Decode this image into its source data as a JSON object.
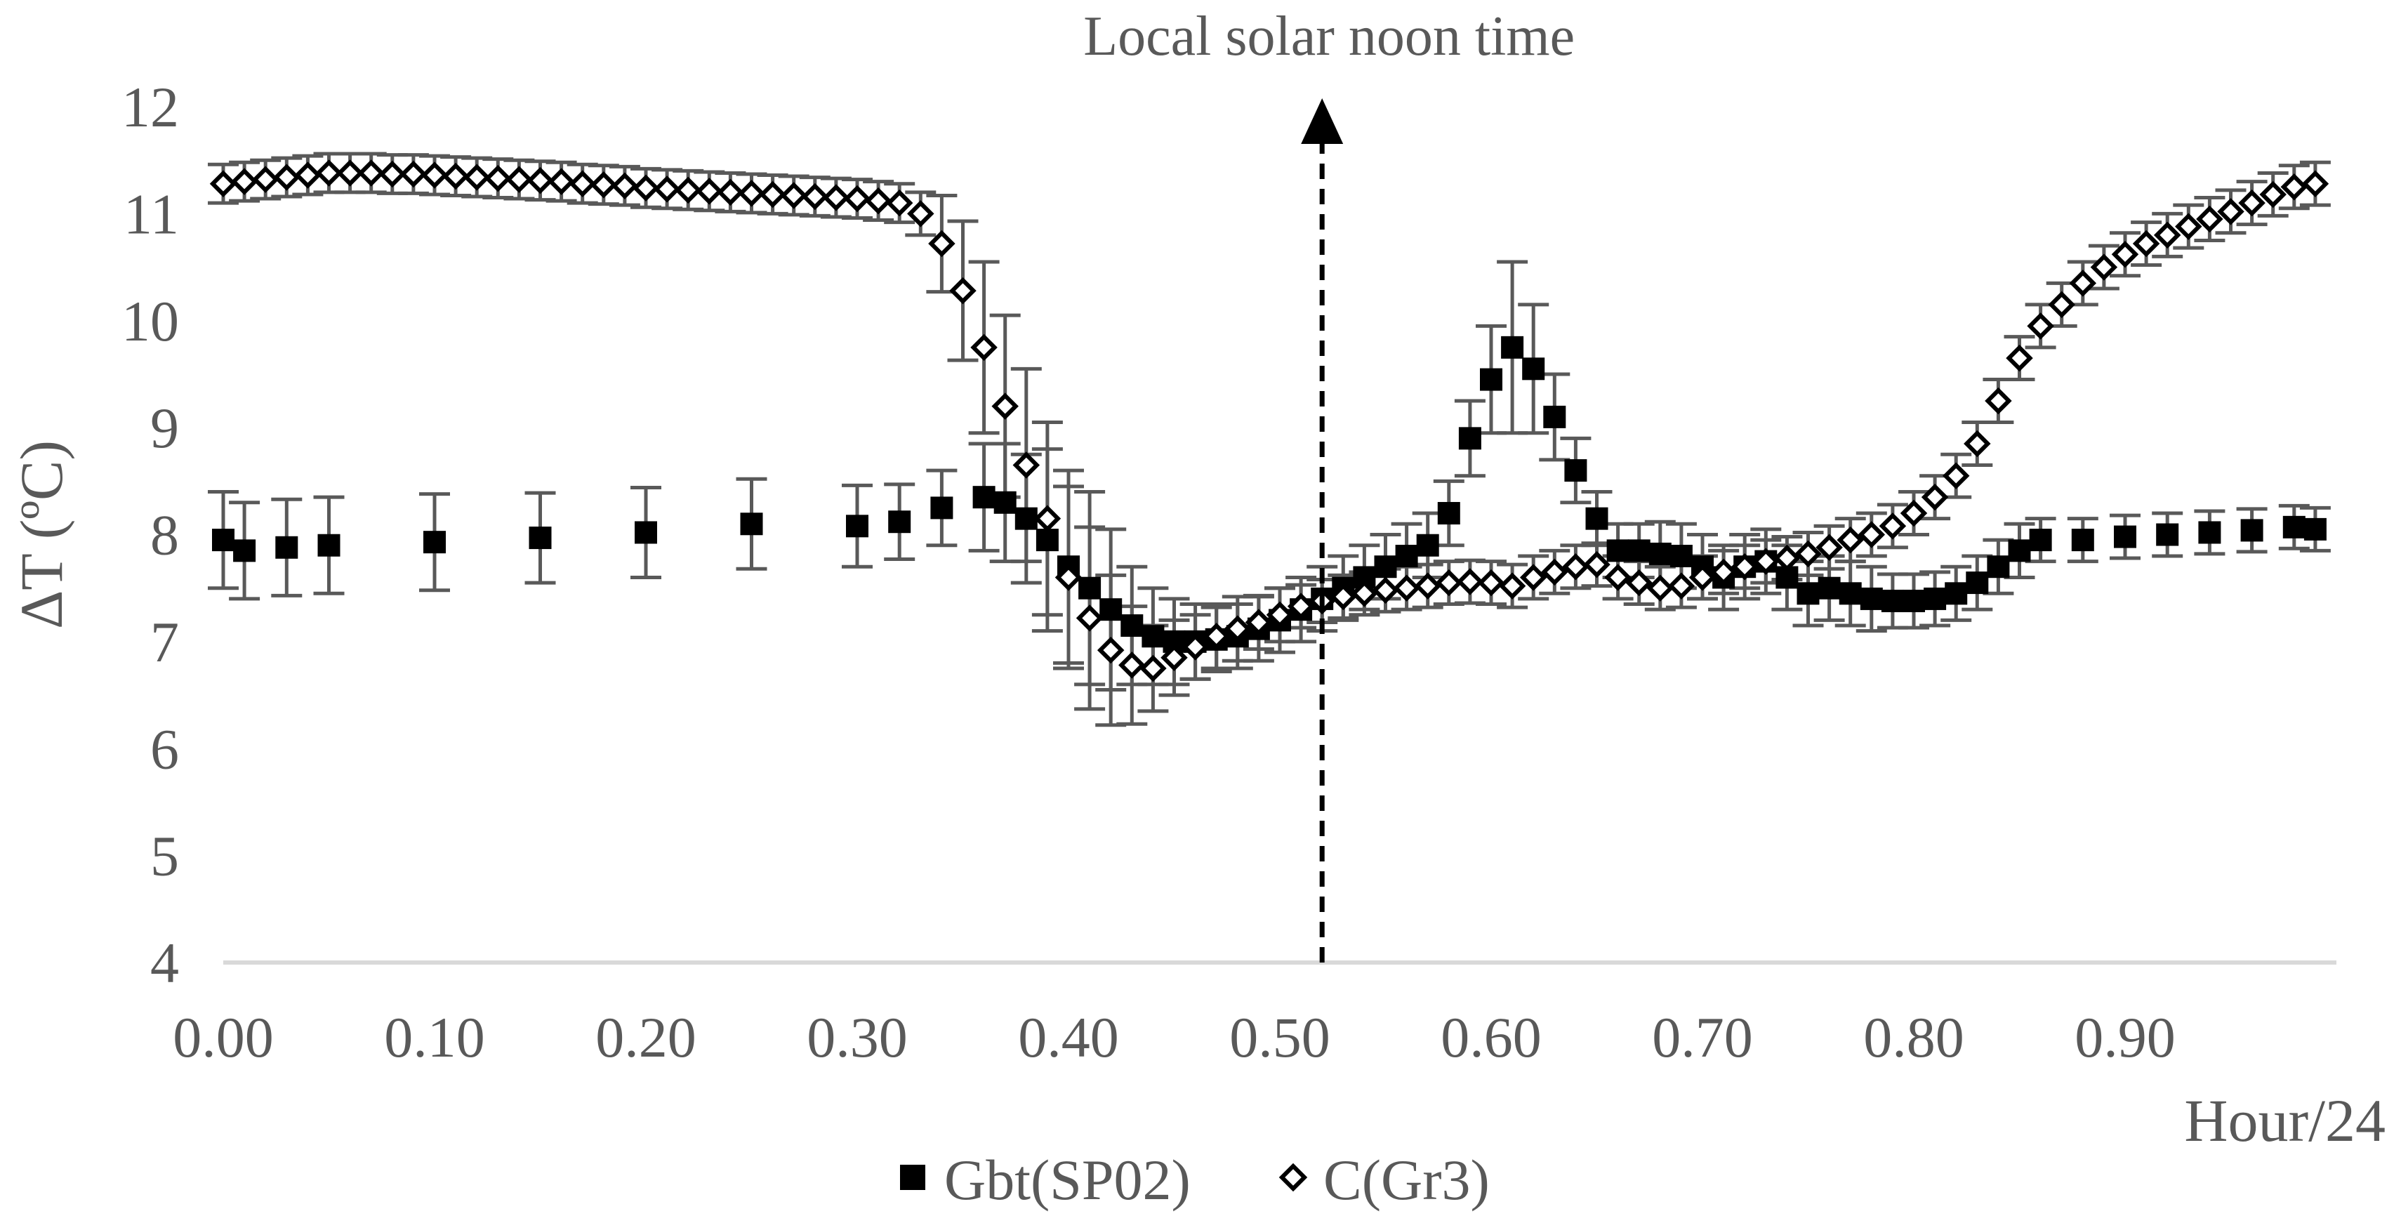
{
  "chart_data": {
    "type": "scatter",
    "title": "",
    "xlabel": "Hour/24",
    "ylabel": "ΔT (ºC)",
    "xlim": [
      0.0,
      1.0
    ],
    "ylim": [
      4,
      12
    ],
    "x_ticks": [
      "0.00",
      "0.10",
      "0.20",
      "0.30",
      "0.40",
      "0.50",
      "0.60",
      "0.70",
      "0.80",
      "0.90"
    ],
    "y_ticks": [
      "4",
      "5",
      "6",
      "7",
      "8",
      "9",
      "10",
      "11",
      "12"
    ],
    "grid": false,
    "legend_position": "bottom",
    "annotation": {
      "text": "Local solar noon time",
      "x": 0.52
    },
    "series": [
      {
        "name": "Gbt(SP02)",
        "marker": "filled-square",
        "color": "#000000",
        "x": [
          0.0,
          0.01,
          0.03,
          0.05,
          0.1,
          0.15,
          0.2,
          0.25,
          0.3,
          0.32,
          0.34,
          0.36,
          0.37,
          0.38,
          0.39,
          0.4,
          0.41,
          0.42,
          0.43,
          0.44,
          0.45,
          0.46,
          0.47,
          0.48,
          0.49,
          0.5,
          0.51,
          0.52,
          0.53,
          0.54,
          0.55,
          0.56,
          0.57,
          0.58,
          0.59,
          0.6,
          0.61,
          0.62,
          0.63,
          0.64,
          0.65,
          0.66,
          0.67,
          0.68,
          0.69,
          0.7,
          0.71,
          0.72,
          0.73,
          0.74,
          0.75,
          0.76,
          0.77,
          0.78,
          0.79,
          0.8,
          0.81,
          0.82,
          0.83,
          0.84,
          0.85,
          0.86,
          0.88,
          0.9,
          0.92,
          0.94,
          0.96,
          0.98,
          0.99
        ],
        "y": [
          7.95,
          7.85,
          7.88,
          7.9,
          7.93,
          7.97,
          8.02,
          8.1,
          8.08,
          8.12,
          8.25,
          8.35,
          8.3,
          8.15,
          7.95,
          7.7,
          7.5,
          7.3,
          7.15,
          7.05,
          7.0,
          7.0,
          7.02,
          7.05,
          7.12,
          7.2,
          7.3,
          7.4,
          7.5,
          7.6,
          7.7,
          7.8,
          7.9,
          8.2,
          8.9,
          9.45,
          9.75,
          9.55,
          9.1,
          8.6,
          8.15,
          7.85,
          7.85,
          7.82,
          7.8,
          7.7,
          7.6,
          7.7,
          7.75,
          7.6,
          7.45,
          7.5,
          7.45,
          7.4,
          7.38,
          7.38,
          7.4,
          7.45,
          7.55,
          7.7,
          7.85,
          7.95,
          7.95,
          7.98,
          8.0,
          8.02,
          8.04,
          8.07,
          8.05
        ],
        "error": [
          0.45,
          0.45,
          0.45,
          0.45,
          0.45,
          0.42,
          0.42,
          0.42,
          0.38,
          0.35,
          0.35,
          0.5,
          0.55,
          0.6,
          0.85,
          0.9,
          0.9,
          0.75,
          0.55,
          0.45,
          0.4,
          0.35,
          0.3,
          0.3,
          0.3,
          0.3,
          0.3,
          0.3,
          0.3,
          0.3,
          0.3,
          0.3,
          0.3,
          0.3,
          0.35,
          0.5,
          0.8,
          0.6,
          0.4,
          0.3,
          0.25,
          0.25,
          0.25,
          0.3,
          0.3,
          0.3,
          0.3,
          0.3,
          0.3,
          0.3,
          0.3,
          0.3,
          0.3,
          0.3,
          0.25,
          0.25,
          0.25,
          0.25,
          0.25,
          0.25,
          0.25,
          0.2,
          0.2,
          0.2,
          0.2,
          0.2,
          0.2,
          0.2,
          0.2
        ]
      },
      {
        "name": "C(Gr3)",
        "marker": "open-diamond",
        "color": "#000000",
        "x": [
          0.0,
          0.01,
          0.02,
          0.03,
          0.04,
          0.05,
          0.06,
          0.07,
          0.08,
          0.09,
          0.1,
          0.11,
          0.12,
          0.13,
          0.14,
          0.15,
          0.16,
          0.17,
          0.18,
          0.19,
          0.2,
          0.21,
          0.22,
          0.23,
          0.24,
          0.25,
          0.26,
          0.27,
          0.28,
          0.29,
          0.3,
          0.31,
          0.32,
          0.33,
          0.34,
          0.35,
          0.36,
          0.37,
          0.38,
          0.39,
          0.4,
          0.41,
          0.42,
          0.43,
          0.44,
          0.45,
          0.46,
          0.47,
          0.48,
          0.49,
          0.5,
          0.51,
          0.52,
          0.53,
          0.54,
          0.55,
          0.56,
          0.57,
          0.58,
          0.59,
          0.6,
          0.61,
          0.62,
          0.63,
          0.64,
          0.65,
          0.66,
          0.67,
          0.68,
          0.69,
          0.7,
          0.71,
          0.72,
          0.73,
          0.74,
          0.75,
          0.76,
          0.77,
          0.78,
          0.79,
          0.8,
          0.81,
          0.82,
          0.83,
          0.84,
          0.85,
          0.86,
          0.87,
          0.88,
          0.89,
          0.9,
          0.91,
          0.92,
          0.93,
          0.94,
          0.95,
          0.96,
          0.97,
          0.98,
          0.99
        ],
        "y": [
          11.28,
          11.3,
          11.32,
          11.34,
          11.36,
          11.38,
          11.38,
          11.38,
          11.37,
          11.37,
          11.36,
          11.35,
          11.34,
          11.33,
          11.32,
          11.31,
          11.3,
          11.28,
          11.27,
          11.26,
          11.24,
          11.23,
          11.22,
          11.21,
          11.2,
          11.19,
          11.18,
          11.17,
          11.16,
          11.15,
          11.14,
          11.12,
          11.1,
          11.0,
          10.72,
          10.28,
          9.75,
          9.2,
          8.65,
          8.15,
          7.6,
          7.22,
          6.92,
          6.78,
          6.75,
          6.85,
          6.95,
          7.05,
          7.12,
          7.18,
          7.25,
          7.33,
          7.38,
          7.42,
          7.45,
          7.48,
          7.5,
          7.52,
          7.55,
          7.56,
          7.55,
          7.52,
          7.6,
          7.65,
          7.7,
          7.72,
          7.6,
          7.55,
          7.5,
          7.52,
          7.6,
          7.65,
          7.7,
          7.75,
          7.78,
          7.82,
          7.88,
          7.95,
          8.0,
          8.08,
          8.2,
          8.35,
          8.55,
          8.85,
          9.25,
          9.65,
          9.95,
          10.15,
          10.35,
          10.5,
          10.62,
          10.72,
          10.8,
          10.88,
          10.95,
          11.02,
          11.1,
          11.18,
          11.25,
          11.28
        ],
        "error": [
          0.18,
          0.18,
          0.18,
          0.18,
          0.18,
          0.18,
          0.18,
          0.18,
          0.18,
          0.18,
          0.18,
          0.18,
          0.18,
          0.18,
          0.18,
          0.18,
          0.18,
          0.18,
          0.18,
          0.18,
          0.18,
          0.18,
          0.18,
          0.18,
          0.18,
          0.18,
          0.18,
          0.18,
          0.18,
          0.18,
          0.18,
          0.18,
          0.18,
          0.2,
          0.45,
          0.65,
          0.8,
          0.85,
          0.9,
          0.9,
          0.85,
          0.85,
          0.7,
          0.55,
          0.4,
          0.35,
          0.3,
          0.3,
          0.3,
          0.25,
          0.25,
          0.2,
          0.2,
          0.2,
          0.2,
          0.2,
          0.2,
          0.2,
          0.2,
          0.2,
          0.2,
          0.2,
          0.2,
          0.2,
          0.2,
          0.2,
          0.2,
          0.2,
          0.2,
          0.2,
          0.2,
          0.2,
          0.2,
          0.2,
          0.2,
          0.2,
          0.2,
          0.2,
          0.2,
          0.2,
          0.2,
          0.2,
          0.2,
          0.2,
          0.2,
          0.2,
          0.2,
          0.2,
          0.2,
          0.2,
          0.2,
          0.2,
          0.2,
          0.2,
          0.2,
          0.2,
          0.2,
          0.2,
          0.2,
          0.2
        ]
      }
    ]
  }
}
